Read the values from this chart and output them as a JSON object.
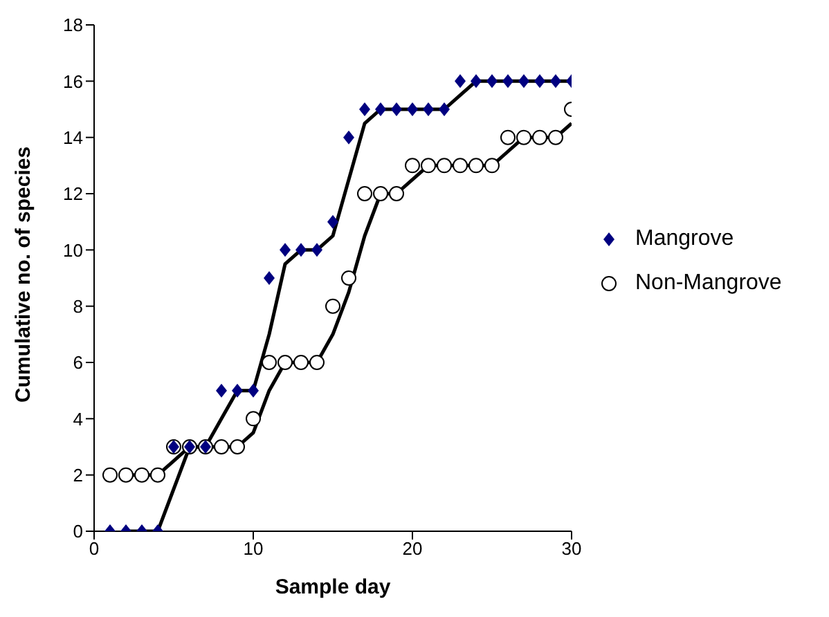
{
  "chart_data": {
    "type": "scatter",
    "xlabel": "Sample day",
    "ylabel": "Cumulative no. of species",
    "xlim": [
      0,
      30
    ],
    "xticks": [
      0,
      10,
      20,
      30
    ],
    "ylim": [
      0,
      18
    ],
    "yticks": [
      0,
      2,
      4,
      6,
      8,
      10,
      12,
      14,
      16,
      18
    ],
    "grid": false,
    "legend": "right",
    "x": [
      1,
      2,
      3,
      4,
      5,
      6,
      7,
      8,
      9,
      10,
      11,
      12,
      13,
      14,
      15,
      16,
      17,
      18,
      19,
      20,
      21,
      22,
      23,
      24,
      25,
      26,
      27,
      28,
      29,
      30
    ],
    "series": [
      {
        "name": "Mangrove",
        "color": "#000080",
        "marker": "diamond",
        "values": [
          0,
          0,
          0,
          0,
          3,
          3,
          3,
          5,
          5,
          5,
          9,
          10,
          10,
          10,
          11,
          14,
          15,
          15,
          15,
          15,
          15,
          15,
          16,
          16,
          16,
          16,
          16,
          16,
          16,
          16
        ]
      },
      {
        "name": "Non-Mangrove",
        "color": "#000000",
        "marker": "circle",
        "values": [
          2,
          2,
          2,
          2,
          3,
          3,
          3,
          3,
          3,
          4,
          6,
          6,
          6,
          6,
          8,
          9,
          12,
          12,
          12,
          13,
          13,
          13,
          13,
          13,
          13,
          14,
          14,
          14,
          14,
          15
        ]
      },
      {
        "type": "line",
        "color": "#000000",
        "marker": "none",
        "x": [
          2,
          3,
          4,
          5,
          6,
          7,
          8,
          9,
          10,
          11,
          12,
          13,
          14,
          15,
          16,
          17,
          18,
          19,
          20,
          21,
          22,
          23,
          24,
          25,
          26,
          27,
          28,
          29,
          30
        ],
        "values": [
          0,
          0,
          0,
          1.5,
          3,
          3,
          4,
          5,
          5,
          7,
          9.5,
          10,
          10,
          10.5,
          12.5,
          14.5,
          15,
          15,
          15,
          15,
          15,
          15.5,
          16,
          16,
          16,
          16,
          16,
          16,
          16
        ]
      },
      {
        "type": "line",
        "color": "#000000",
        "marker": "none",
        "x": [
          2,
          3,
          4,
          5,
          6,
          7,
          8,
          9,
          10,
          11,
          12,
          13,
          14,
          15,
          16,
          17,
          18,
          19,
          20,
          21,
          22,
          23,
          24,
          25,
          26,
          27,
          28,
          29,
          30
        ],
        "values": [
          2,
          2,
          2,
          2.5,
          3,
          3,
          3,
          3,
          3.5,
          5,
          6,
          6,
          6,
          7,
          8.5,
          10.5,
          12,
          12,
          12.5,
          13,
          13,
          13,
          13,
          13,
          13.5,
          14,
          14,
          14,
          14.5
        ]
      }
    ]
  }
}
